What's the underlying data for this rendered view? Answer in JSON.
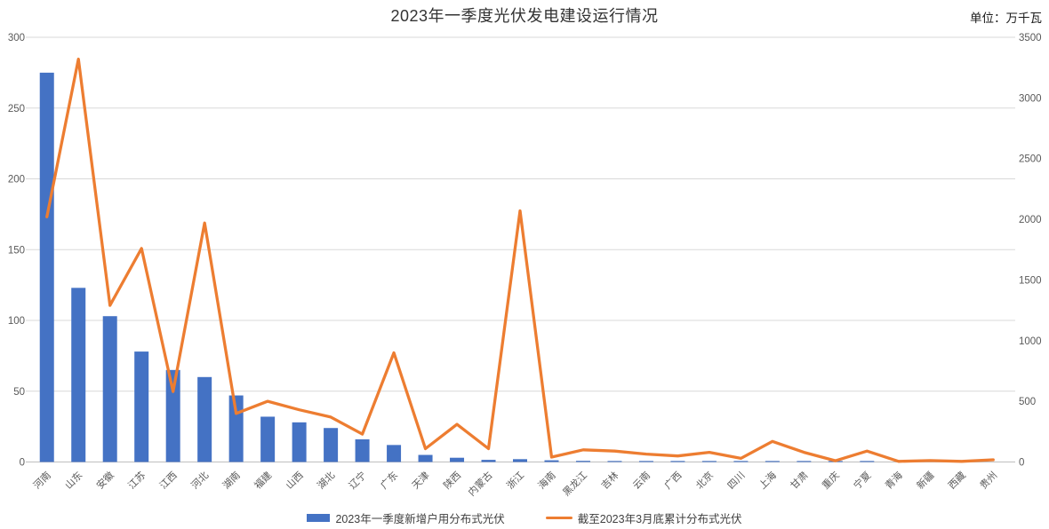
{
  "chart": {
    "title": "2023年一季度光伏发电建设运行情况",
    "unit_label": "单位：万千瓦",
    "clipped_left_edge_glyph": "0"
  },
  "colors": {
    "bar": "#4472C4",
    "line": "#ED7D31",
    "gridline": "#D9D9D9",
    "baseline": "#BFBFBF",
    "axis_text": "#595959",
    "title_text": "#333333"
  },
  "chart_data": {
    "type": "bar",
    "subtype": "combo-bar-line-dual-axis",
    "title": "2023年一季度光伏发电建设运行情况",
    "unit": "万千瓦",
    "grid": true,
    "legend_position": "bottom",
    "categories": [
      "河南",
      "山东",
      "安徽",
      "江苏",
      "江西",
      "河北",
      "湖南",
      "福建",
      "山西",
      "湖北",
      "辽宁",
      "广东",
      "天津",
      "陕西",
      "内蒙古",
      "浙江",
      "海南",
      "黑龙江",
      "吉林",
      "云南",
      "广西",
      "北京",
      "四川",
      "上海",
      "甘肃",
      "重庆",
      "宁夏",
      "青海",
      "新疆",
      "西藏",
      "贵州"
    ],
    "series": [
      {
        "name": "2023年一季度新增户用分布式光伏",
        "type": "bar",
        "axis": "left",
        "color": "#4472C4",
        "values": [
          275,
          123,
          103,
          78,
          65,
          60,
          47,
          32,
          28,
          24,
          16,
          12,
          5,
          3,
          1.5,
          2,
          1.2,
          0.8,
          0.7,
          0.7,
          0.7,
          0.7,
          0.7,
          0.7,
          0.7,
          0.7,
          0.7,
          0,
          0,
          0,
          0
        ]
      },
      {
        "name": "截至2023年3月底累计分布式光伏",
        "type": "line",
        "axis": "right",
        "color": "#ED7D31",
        "values": [
          2020,
          3320,
          1290,
          1760,
          580,
          1970,
          400,
          500,
          430,
          370,
          230,
          900,
          110,
          310,
          110,
          2070,
          40,
          100,
          90,
          65,
          50,
          80,
          30,
          170,
          80,
          10,
          90,
          5,
          12,
          5,
          18
        ]
      }
    ],
    "left_axis": {
      "min": 0,
      "max": 300,
      "step": 50,
      "tick_labels": [
        "0",
        "50",
        "100",
        "150",
        "200",
        "250",
        "300"
      ]
    },
    "right_axis": {
      "min": 0,
      "max": 3500,
      "step": 500,
      "tick_labels": [
        "0",
        "500",
        "1000",
        "1500",
        "2000",
        "2500",
        "3000",
        "3500"
      ]
    }
  }
}
